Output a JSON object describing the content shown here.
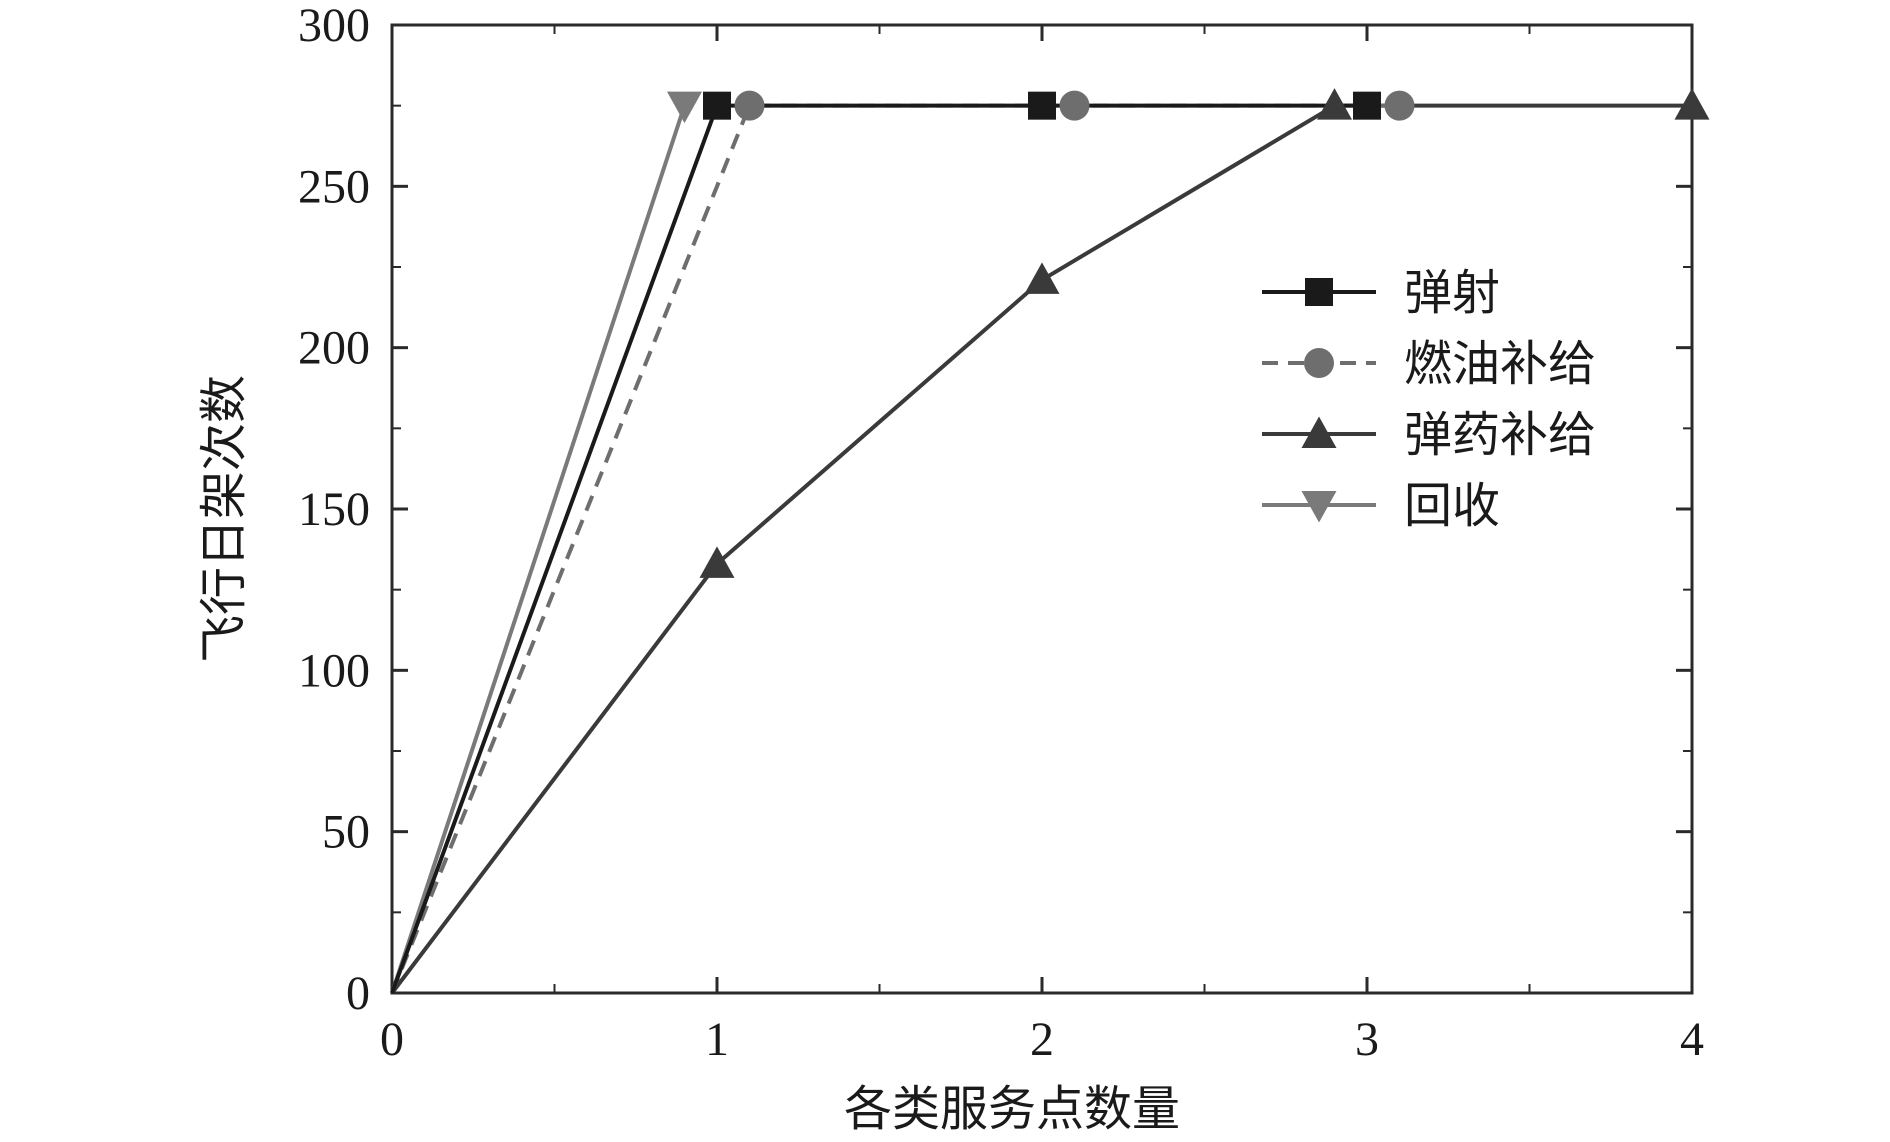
{
  "chart_data": {
    "type": "line",
    "title": "",
    "xlabel": "各类服务点数量",
    "ylabel": "飞行日架次数",
    "xlim": [
      0,
      4
    ],
    "ylim": [
      0,
      300
    ],
    "x_ticks": [
      "0",
      "1",
      "2",
      "3",
      "4"
    ],
    "y_ticks": [
      "0",
      "50",
      "100",
      "150",
      "200",
      "250",
      "300"
    ],
    "grid": false,
    "legend_position": "right",
    "series": [
      {
        "name": "弹射",
        "marker": "square",
        "dash": "solid",
        "color": "#1a1a1a",
        "x": [
          0,
          1,
          2,
          3
        ],
        "y": [
          0,
          275,
          275,
          275
        ]
      },
      {
        "name": "燃油补给",
        "marker": "circle",
        "dash": "dashed",
        "color": "#6e6e6e",
        "x": [
          0,
          1.1,
          2.1,
          3.1
        ],
        "y": [
          0,
          275,
          275,
          275
        ]
      },
      {
        "name": "弹药补给",
        "marker": "triangle-up",
        "dash": "solid",
        "color": "#3a3a3a",
        "x": [
          0,
          1,
          2,
          2.9,
          4
        ],
        "y": [
          0,
          133,
          221,
          275,
          275
        ]
      },
      {
        "name": "回收",
        "marker": "triangle-down",
        "dash": "solid",
        "color": "#7a7a7a",
        "x": [
          0,
          0.9
        ],
        "y": [
          0,
          275
        ]
      }
    ]
  }
}
